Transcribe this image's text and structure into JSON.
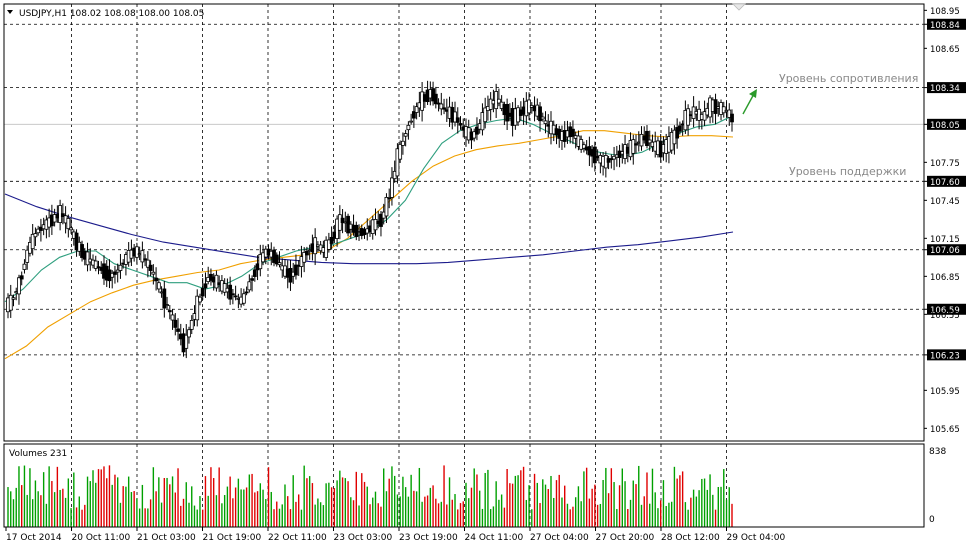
{
  "header": {
    "symbol_line": "USDJPY,H1  108.02 108.08 108.00 108.05"
  },
  "volume_panel": {
    "label": "Volumes 231",
    "max_label": "838",
    "min_label": "0"
  },
  "annotations": {
    "resistance": "Уровень сопротивления",
    "support": "Уровень поддержки"
  },
  "colors": {
    "bull": "#00a000",
    "bear": "#e00000",
    "ma_fast": "#2f9f7f",
    "ma_mid": "#f0a000",
    "ma_slow": "#1c1c8c",
    "volume_up": "#00a000",
    "volume_down": "#e00000",
    "grid": "#000000",
    "arrow": "#2a9a2a",
    "highlight_bg": "#000000",
    "highlight_fg": "#ffffff"
  },
  "chart_data": {
    "type": "candlestick",
    "symbol": "USDJPY",
    "timeframe": "H1",
    "ylim": [
      105.55,
      109.0
    ],
    "yticks": [
      "108.95",
      "108.84",
      "108.65",
      "108.34",
      "108.05",
      "107.75",
      "107.60",
      "107.45",
      "107.15",
      "107.06",
      "106.85",
      "106.59",
      "106.55",
      "106.23",
      "105.95",
      "105.65"
    ],
    "highlighted_levels": [
      "108.84",
      "108.34",
      "108.05",
      "107.60",
      "107.06",
      "106.59",
      "106.23"
    ],
    "xticks": [
      "17 Oct 2014",
      "20 Oct 11:00",
      "21 Oct 03:00",
      "21 Oct 19:00",
      "22 Oct 11:00",
      "23 Oct 03:00",
      "23 Oct 19:00",
      "24 Oct 11:00",
      "27 Oct 04:00",
      "27 Oct 20:00",
      "28 Oct 12:00",
      "29 Oct 04:00"
    ],
    "horizontal_levels": [
      108.84,
      108.34,
      108.05,
      107.6,
      107.06,
      106.59,
      106.23
    ],
    "last_price": 108.05,
    "closes": [
      106.65,
      106.8,
      107.05,
      107.2,
      107.25,
      107.3,
      107.35,
      107.25,
      107.1,
      107.0,
      106.95,
      106.9,
      106.85,
      106.9,
      107.0,
      107.05,
      107.0,
      106.9,
      106.75,
      106.6,
      106.45,
      106.3,
      106.5,
      106.7,
      106.85,
      106.8,
      106.75,
      106.7,
      106.65,
      106.8,
      106.95,
      107.05,
      107.0,
      106.9,
      106.85,
      106.95,
      107.05,
      107.1,
      107.05,
      107.15,
      107.3,
      107.25,
      107.2,
      107.2,
      107.25,
      107.3,
      107.5,
      107.8,
      108.0,
      108.15,
      108.25,
      108.3,
      108.2,
      108.15,
      108.1,
      108.0,
      107.95,
      108.05,
      108.2,
      108.25,
      108.15,
      108.1,
      108.15,
      108.2,
      108.15,
      108.05,
      108.0,
      107.95,
      108.0,
      107.9,
      107.85,
      107.8,
      107.75,
      107.78,
      107.82,
      107.85,
      107.9,
      107.95,
      107.88,
      107.85,
      107.9,
      108.0,
      108.1,
      108.15,
      108.1,
      108.2,
      108.18,
      108.15,
      108.05
    ],
    "ma_fast": [
      106.65,
      106.75,
      106.9,
      107.0,
      107.05,
      107.05,
      106.95,
      106.9,
      106.85,
      106.8,
      106.8,
      106.75,
      106.78,
      106.85,
      106.95,
      107.0,
      107.05,
      107.08,
      107.1,
      107.15,
      107.2,
      107.3,
      107.45,
      107.7,
      107.9,
      108.0,
      108.05,
      108.08,
      108.1,
      108.05,
      107.98,
      107.92,
      107.85,
      107.82,
      107.8,
      107.83,
      107.9,
      107.98,
      108.03,
      108.05,
      108.12
    ],
    "ma_mid": [
      106.2,
      106.3,
      106.45,
      106.55,
      106.65,
      106.72,
      106.78,
      106.82,
      106.85,
      106.88,
      106.9,
      106.95,
      106.98,
      107.0,
      107.02,
      107.05,
      107.15,
      107.3,
      107.45,
      107.6,
      107.72,
      107.8,
      107.85,
      107.88,
      107.9,
      107.93,
      107.96,
      108.0,
      108.0,
      107.98,
      107.96,
      107.95,
      107.96,
      107.96,
      107.95
    ],
    "ma_slow": [
      107.5,
      107.4,
      107.32,
      107.25,
      107.18,
      107.12,
      107.08,
      107.04,
      107.0,
      106.98,
      106.96,
      106.95,
      106.95,
      106.95,
      106.96,
      106.98,
      107.0,
      107.02,
      107.05,
      107.08,
      107.1,
      107.13,
      107.16,
      107.2
    ],
    "volumes_max": 838
  }
}
